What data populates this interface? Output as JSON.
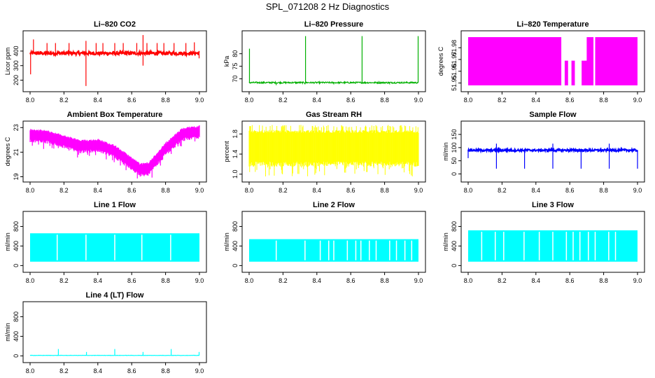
{
  "page": {
    "title": "SPL_071208  2 Hz Diagnostics"
  },
  "chart_data": [
    {
      "id": "co2",
      "type": "line",
      "title": "Li–820 CO2",
      "xlabel": "",
      "ylabel": "Licor ppm",
      "xlim": [
        8.0,
        9.0
      ],
      "ylim": [
        140,
        520
      ],
      "xticks": [
        8.0,
        8.2,
        8.4,
        8.6,
        8.8,
        9.0
      ],
      "yticks": [
        200,
        300,
        400
      ],
      "color": "#ff0000",
      "series": [
        {
          "name": "CO2",
          "baseline": 385,
          "noise": 12,
          "spikes_up": [
            [
              8.02,
              480
            ],
            [
              8.1,
              455
            ],
            [
              8.15,
              455
            ],
            [
              8.23,
              455
            ],
            [
              8.33,
              470
            ],
            [
              8.39,
              455
            ],
            [
              8.43,
              455
            ],
            [
              8.5,
              455
            ],
            [
              8.55,
              455
            ],
            [
              8.63,
              455
            ],
            [
              8.667,
              510
            ],
            [
              8.69,
              455
            ],
            [
              8.75,
              455
            ],
            [
              8.79,
              455
            ],
            [
              8.85,
              455
            ],
            [
              8.92,
              455
            ],
            [
              8.97,
              460
            ]
          ],
          "spikes_down": [
            [
              8.003,
              240
            ],
            [
              8.33,
              160
            ],
            [
              8.667,
              300
            ],
            [
              8.998,
              350
            ]
          ]
        }
      ]
    },
    {
      "id": "pressure",
      "type": "line",
      "title": "Li–820 Pressure",
      "xlabel": "",
      "ylabel": "kPa",
      "xlim": [
        8.0,
        9.0
      ],
      "ylim": [
        66,
        88
      ],
      "xticks": [
        8.0,
        8.2,
        8.4,
        8.6,
        8.8,
        9.0
      ],
      "yticks": [
        70,
        75,
        80
      ],
      "color": "#00b000",
      "series": [
        {
          "name": "Pressure",
          "baseline": 68.5,
          "noise": 0.3,
          "spikes_up": [
            [
              8.002,
              82
            ],
            [
              8.333,
              87
            ],
            [
              8.667,
              87
            ],
            [
              8.998,
              87
            ]
          ],
          "spikes_down": [
            [
              8.16,
              67.5
            ],
            [
              8.33,
              67.8
            ],
            [
              8.5,
              67.8
            ],
            [
              8.83,
              67.8
            ]
          ]
        }
      ]
    },
    {
      "id": "licor_temp",
      "type": "area",
      "title": "Li–820 Temperature",
      "xlabel": "",
      "ylabel": "degrees C",
      "xlim": [
        8.0,
        9.0
      ],
      "ylim": [
        51.945,
        51.992
      ],
      "xticks": [
        8.0,
        8.2,
        8.4,
        8.6,
        8.8,
        9.0
      ],
      "yticks": [
        51.95,
        51.96,
        51.97,
        51.98
      ],
      "color": "#ff00ff",
      "series": [
        {
          "name": "Temperature",
          "low": 51.948,
          "high": 51.989,
          "gaps": [
            [
              8.55,
              8.57
            ],
            [
              8.59,
              8.61
            ],
            [
              8.63,
              8.67
            ],
            [
              8.74,
              8.75
            ]
          ],
          "step_low": [
            [
              8.56,
              8.7,
              51.969
            ]
          ]
        }
      ]
    },
    {
      "id": "ambient_temp",
      "type": "area",
      "title": "Ambient Box Temperature",
      "xlabel": "",
      "ylabel": "degrees C",
      "xlim": [
        8.0,
        9.0
      ],
      "ylim": [
        18.8,
        23.3
      ],
      "xticks": [
        8.0,
        8.2,
        8.4,
        8.6,
        8.8,
        9.0
      ],
      "yticks": [
        19,
        21,
        23
      ],
      "color": "#ff00ff",
      "series": [
        {
          "name": "Ambient",
          "center": [
            [
              8.0,
              22.4
            ],
            [
              8.1,
              22.3
            ],
            [
              8.2,
              21.9
            ],
            [
              8.3,
              21.5
            ],
            [
              8.4,
              21.6
            ],
            [
              8.5,
              21.1
            ],
            [
              8.6,
              20.1
            ],
            [
              8.65,
              19.6
            ],
            [
              8.7,
              19.7
            ],
            [
              8.8,
              21.3
            ],
            [
              8.9,
              22.5
            ],
            [
              9.0,
              22.7
            ]
          ],
          "band": 0.35
        }
      ]
    },
    {
      "id": "gas_rh",
      "type": "area",
      "title": "Gas Stream RH",
      "xlabel": "",
      "ylabel": "percent",
      "xlim": [
        8.0,
        9.0
      ],
      "ylim": [
        0.9,
        2.0
      ],
      "xticks": [
        8.0,
        8.2,
        8.4,
        8.6,
        8.8,
        9.0
      ],
      "yticks": [
        1.0,
        1.4,
        1.8
      ],
      "color": "#ffff00",
      "series": [
        {
          "name": "RH",
          "low": 1.2,
          "high": 1.85,
          "min": 0.95,
          "max": 1.98
        }
      ]
    },
    {
      "id": "sample_flow",
      "type": "line",
      "title": "Sample Flow",
      "xlabel": "",
      "ylabel": "ml/min",
      "xlim": [
        8.0,
        9.0
      ],
      "ylim": [
        -20,
        190
      ],
      "xticks": [
        8.0,
        8.2,
        8.4,
        8.6,
        8.8,
        9.0
      ],
      "yticks": [
        0,
        50,
        100,
        150
      ],
      "color": "#0000ff",
      "series": [
        {
          "name": "Sample",
          "baseline": 90,
          "noise": 4,
          "spikes_up": [
            [
              8.167,
              115
            ],
            [
              8.5,
              115
            ],
            [
              8.833,
              115
            ]
          ],
          "spikes_down": [
            [
              8.0,
              60
            ],
            [
              8.167,
              20
            ],
            [
              8.333,
              20
            ],
            [
              8.5,
              20
            ],
            [
              8.667,
              20
            ],
            [
              8.833,
              20
            ],
            [
              9.0,
              20
            ]
          ]
        }
      ]
    },
    {
      "id": "line1",
      "type": "area",
      "title": "Line 1 Flow",
      "xlabel": "",
      "ylabel": "ml/min",
      "xlim": [
        8.0,
        9.0
      ],
      "ylim": [
        -80,
        1050
      ],
      "xticks": [
        8.0,
        8.2,
        8.4,
        8.6,
        8.8,
        9.0
      ],
      "yticks": [
        0,
        400,
        800
      ],
      "color": "#00ffff",
      "series": [
        {
          "name": "Line 1",
          "low": 80,
          "high": 660,
          "gaps": [
            8.16,
            8.33,
            8.5,
            8.66,
            8.83
          ]
        }
      ]
    },
    {
      "id": "line2",
      "type": "area",
      "title": "Line 2 Flow",
      "xlabel": "",
      "ylabel": "ml/min",
      "xlim": [
        8.0,
        9.0
      ],
      "ylim": [
        -80,
        1050
      ],
      "xticks": [
        8.0,
        8.2,
        8.4,
        8.6,
        8.8,
        9.0
      ],
      "yticks": [
        0,
        400,
        800
      ],
      "color": "#00ffff",
      "series": [
        {
          "name": "Line 2",
          "low": 80,
          "high": 540,
          "gaps": [
            8.16,
            8.33,
            8.42,
            8.47,
            8.5,
            8.58,
            8.63,
            8.66,
            8.71,
            8.75,
            8.83,
            8.87,
            8.92,
            8.96
          ]
        }
      ]
    },
    {
      "id": "line3",
      "type": "area",
      "title": "Line 3 Flow",
      "xlabel": "",
      "ylabel": "ml/min",
      "xlim": [
        8.0,
        9.0
      ],
      "ylim": [
        -80,
        1050
      ],
      "xticks": [
        8.0,
        8.2,
        8.4,
        8.6,
        8.8,
        9.0
      ],
      "yticks": [
        0,
        400,
        800
      ],
      "color": "#00ffff",
      "series": [
        {
          "name": "Line 3",
          "low": 80,
          "high": 720,
          "gaps": [
            8.08,
            8.16,
            8.21,
            8.33,
            8.42,
            8.5,
            8.58,
            8.62,
            8.66,
            8.71,
            8.75,
            8.83,
            8.87
          ]
        }
      ]
    },
    {
      "id": "line4",
      "type": "line",
      "title": "Line 4 (LT) Flow",
      "xlabel": "",
      "ylabel": "ml/min",
      "xlim": [
        8.0,
        9.0
      ],
      "ylim": [
        -80,
        1050
      ],
      "xticks": [
        8.0,
        8.2,
        8.4,
        8.6,
        8.8,
        9.0
      ],
      "yticks": [
        0,
        400,
        800
      ],
      "color": "#00ffff",
      "series": [
        {
          "name": "Line 4",
          "baseline": 10,
          "noise": 3,
          "spikes_up": [
            [
              8.167,
              140
            ],
            [
              8.333,
              80
            ],
            [
              8.5,
              140
            ],
            [
              8.667,
              80
            ],
            [
              8.833,
              140
            ],
            [
              8.998,
              80
            ]
          ],
          "spikes_down": []
        }
      ]
    }
  ]
}
